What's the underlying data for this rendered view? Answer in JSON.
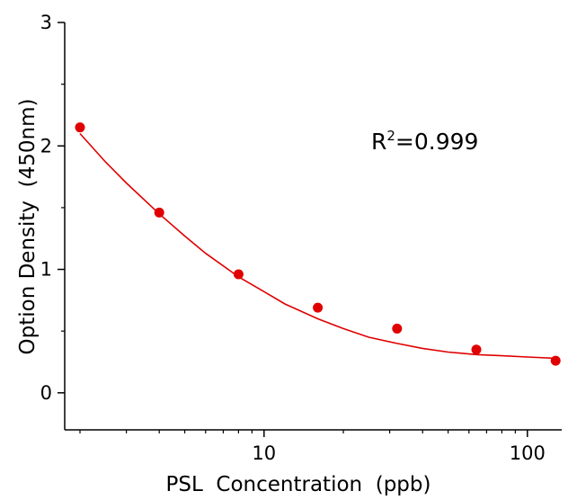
{
  "chart_data": {
    "type": "scatter",
    "title": "",
    "xlabel": "PSL  Concentration  (ppb)",
    "ylabel": "Option Density  (450nm)",
    "xscale": "log",
    "xlim": [
      1.75,
      135
    ],
    "ylim": [
      -0.3,
      3.0
    ],
    "x_ticks": [
      10,
      100
    ],
    "x_tick_labels": [
      "10",
      "100"
    ],
    "y_ticks": [
      0,
      1,
      2,
      3
    ],
    "y_tick_labels": [
      "0",
      "1",
      "2",
      "3"
    ],
    "grid": false,
    "legend": "none",
    "annotation": {
      "r2_prefix": "R",
      "r2_sup": "2",
      "r2_value": "=0.999"
    },
    "series": [
      {
        "marker_color": "#e00000",
        "x": [
          2,
          4,
          8,
          16,
          32,
          64,
          128
        ],
        "y": [
          2.15,
          1.46,
          0.96,
          0.69,
          0.52,
          0.35,
          0.26
        ]
      }
    ],
    "fit": {
      "line_color": "#e00000",
      "x": [
        2,
        2.5,
        3,
        4,
        5,
        6,
        8,
        10,
        12,
        16,
        20,
        25,
        32,
        40,
        50,
        64,
        80,
        100,
        128
      ],
      "y": [
        2.1,
        1.87,
        1.7,
        1.45,
        1.27,
        1.13,
        0.94,
        0.82,
        0.72,
        0.6,
        0.52,
        0.45,
        0.4,
        0.36,
        0.33,
        0.31,
        0.3,
        0.29,
        0.28
      ]
    }
  }
}
